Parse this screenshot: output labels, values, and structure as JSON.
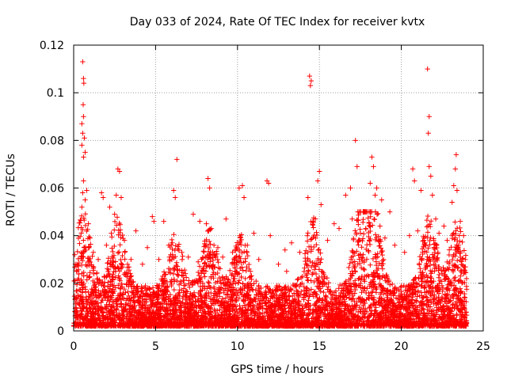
{
  "chart_data": {
    "type": "scatter",
    "title": "Day 033 of 2024, Rate Of TEC Index for receiver kvtx",
    "xlabel": "GPS time / hours",
    "ylabel": "ROTI / TECUs",
    "xlim": [
      0,
      25
    ],
    "ylim": [
      0,
      0.12
    ],
    "xticks": [
      "0",
      "5",
      "10",
      "15",
      "20",
      "25"
    ],
    "yticks": [
      "0",
      "0.02",
      "0.04",
      "0.06",
      "0.08",
      "0.1",
      "0.12"
    ],
    "grid": true,
    "marker": "+",
    "series": [
      {
        "name": "ROTI",
        "color": "#ff0000",
        "points": [
          [
            0.55,
            0.113
          ],
          [
            0.6,
            0.106
          ],
          [
            0.62,
            0.104
          ],
          [
            0.58,
            0.095
          ],
          [
            0.6,
            0.09
          ],
          [
            0.5,
            0.087
          ],
          [
            0.55,
            0.083
          ],
          [
            0.65,
            0.081
          ],
          [
            0.5,
            0.078
          ],
          [
            0.7,
            0.075
          ],
          [
            0.6,
            0.073
          ],
          [
            0.6,
            0.063
          ],
          [
            0.55,
            0.058
          ],
          [
            0.7,
            0.055
          ],
          [
            0.5,
            0.052
          ],
          [
            0.8,
            0.059
          ],
          [
            1.7,
            0.058
          ],
          [
            1.8,
            0.056
          ],
          [
            2.2,
            0.052
          ],
          [
            2.7,
            0.068
          ],
          [
            2.8,
            0.067
          ],
          [
            2.6,
            0.057
          ],
          [
            2.9,
            0.056
          ],
          [
            2.5,
            0.049
          ],
          [
            3.8,
            0.042
          ],
          [
            4.8,
            0.048
          ],
          [
            4.9,
            0.046
          ],
          [
            5.5,
            0.046
          ],
          [
            6.1,
            0.059
          ],
          [
            6.2,
            0.056
          ],
          [
            6.3,
            0.072
          ],
          [
            7.3,
            0.049
          ],
          [
            7.7,
            0.046
          ],
          [
            8.2,
            0.064
          ],
          [
            8.3,
            0.06
          ],
          [
            8.1,
            0.045
          ],
          [
            8.4,
            0.043
          ],
          [
            9.3,
            0.047
          ],
          [
            10.1,
            0.06
          ],
          [
            10.3,
            0.061
          ],
          [
            10.4,
            0.056
          ],
          [
            11.0,
            0.041
          ],
          [
            11.8,
            0.063
          ],
          [
            11.9,
            0.062
          ],
          [
            12.0,
            0.04
          ],
          [
            12.9,
            0.034
          ],
          [
            13.3,
            0.037
          ],
          [
            14.3,
            0.056
          ],
          [
            14.4,
            0.107
          ],
          [
            14.5,
            0.105
          ],
          [
            14.45,
            0.103
          ],
          [
            14.6,
            0.046
          ],
          [
            15.0,
            0.067
          ],
          [
            14.9,
            0.063
          ],
          [
            15.1,
            0.053
          ],
          [
            15.9,
            0.045
          ],
          [
            16.6,
            0.057
          ],
          [
            16.9,
            0.06
          ],
          [
            17.2,
            0.08
          ],
          [
            17.3,
            0.069
          ],
          [
            17.7,
            0.05
          ],
          [
            18.2,
            0.073
          ],
          [
            18.3,
            0.069
          ],
          [
            18.1,
            0.062
          ],
          [
            18.5,
            0.06
          ],
          [
            18.4,
            0.057
          ],
          [
            18.8,
            0.055
          ],
          [
            19.3,
            0.05
          ],
          [
            20.7,
            0.068
          ],
          [
            20.8,
            0.063
          ],
          [
            21.2,
            0.059
          ],
          [
            21.6,
            0.11
          ],
          [
            21.7,
            0.09
          ],
          [
            21.65,
            0.083
          ],
          [
            21.7,
            0.069
          ],
          [
            21.8,
            0.065
          ],
          [
            21.9,
            0.057
          ],
          [
            22.1,
            0.047
          ],
          [
            22.6,
            0.044
          ],
          [
            23.2,
            0.061
          ],
          [
            23.3,
            0.068
          ],
          [
            23.35,
            0.074
          ],
          [
            23.4,
            0.059
          ],
          [
            23.1,
            0.054
          ],
          [
            23.6,
            0.046
          ],
          [
            23.8,
            0.04
          ],
          [
            0.1,
            0.028
          ],
          [
            0.2,
            0.025
          ],
          [
            0.3,
            0.022
          ],
          [
            0.9,
            0.045
          ],
          [
            1.0,
            0.039
          ],
          [
            1.2,
            0.033
          ],
          [
            1.5,
            0.03
          ],
          [
            2.0,
            0.036
          ],
          [
            2.3,
            0.041
          ],
          [
            3.1,
            0.038
          ],
          [
            3.5,
            0.03
          ],
          [
            4.2,
            0.028
          ],
          [
            4.5,
            0.035
          ],
          [
            5.2,
            0.03
          ],
          [
            5.8,
            0.036
          ],
          [
            6.6,
            0.033
          ],
          [
            7.0,
            0.031
          ],
          [
            7.6,
            0.029
          ],
          [
            8.8,
            0.035
          ],
          [
            9.1,
            0.031
          ],
          [
            9.7,
            0.033
          ],
          [
            10.6,
            0.036
          ],
          [
            11.3,
            0.03
          ],
          [
            12.5,
            0.028
          ],
          [
            13.0,
            0.025
          ],
          [
            13.8,
            0.033
          ],
          [
            15.5,
            0.038
          ],
          [
            16.2,
            0.043
          ],
          [
            17.0,
            0.047
          ],
          [
            17.5,
            0.041
          ],
          [
            18.7,
            0.044
          ],
          [
            19.0,
            0.039
          ],
          [
            19.6,
            0.036
          ],
          [
            20.2,
            0.033
          ],
          [
            20.5,
            0.04
          ],
          [
            21.0,
            0.042
          ],
          [
            22.3,
            0.041
          ],
          [
            22.8,
            0.038
          ],
          [
            23.5,
            0.036
          ],
          [
            23.9,
            0.03
          ]
        ],
        "dense_band": {
          "x_range": [
            0,
            24
          ],
          "y_min": 0.002,
          "y_typical_max": 0.02,
          "count": 6000
        }
      }
    ]
  }
}
